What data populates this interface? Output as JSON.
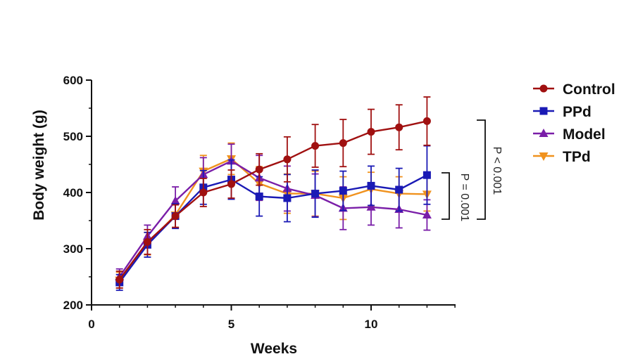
{
  "chart_data": {
    "type": "line",
    "title": "",
    "xlabel": "Weeks",
    "ylabel": "Body weight (g)",
    "xlim": [
      0,
      13
    ],
    "ylim": [
      200,
      600
    ],
    "xticks": [
      0,
      5,
      10
    ],
    "yticks": [
      200,
      300,
      400,
      500,
      600
    ],
    "x": [
      1,
      2,
      3,
      4,
      5,
      6,
      7,
      8,
      9,
      10,
      11,
      12
    ],
    "series": [
      {
        "name": "Control",
        "color": "#a01010",
        "marker": "circle",
        "values": [
          245,
          312,
          358,
          400,
          415,
          441,
          459,
          483,
          488,
          508,
          516,
          527
        ],
        "errors": [
          15,
          22,
          20,
          25,
          25,
          28,
          40,
          38,
          42,
          40,
          40,
          43
        ]
      },
      {
        "name": "PPd",
        "color": "#1a1ab5",
        "marker": "square",
        "values": [
          240,
          307,
          358,
          409,
          423,
          393,
          390,
          398,
          403,
          412,
          405,
          431
        ],
        "errors": [
          14,
          22,
          22,
          30,
          35,
          35,
          42,
          42,
          35,
          35,
          38,
          52
        ]
      },
      {
        "name": "Model",
        "color": "#7a1ea8",
        "marker": "triangle-up",
        "values": [
          250,
          322,
          385,
          432,
          456,
          426,
          407,
          395,
          372,
          374,
          370,
          360
        ],
        "errors": [
          14,
          20,
          25,
          30,
          30,
          40,
          40,
          38,
          38,
          32,
          33,
          27
        ]
      },
      {
        "name": "TPd",
        "color": "#f0921e",
        "marker": "triangle-down",
        "values": [
          244,
          309,
          360,
          438,
          460,
          416,
          398,
          398,
          390,
          406,
          398,
          397
        ],
        "errors": [
          14,
          20,
          22,
          28,
          28,
          30,
          35,
          40,
          38,
          30,
          30,
          30
        ]
      }
    ],
    "legend_position": "right",
    "annotations": [
      {
        "text": "P < 0.001"
      },
      {
        "text": "P = 0.001"
      }
    ]
  }
}
